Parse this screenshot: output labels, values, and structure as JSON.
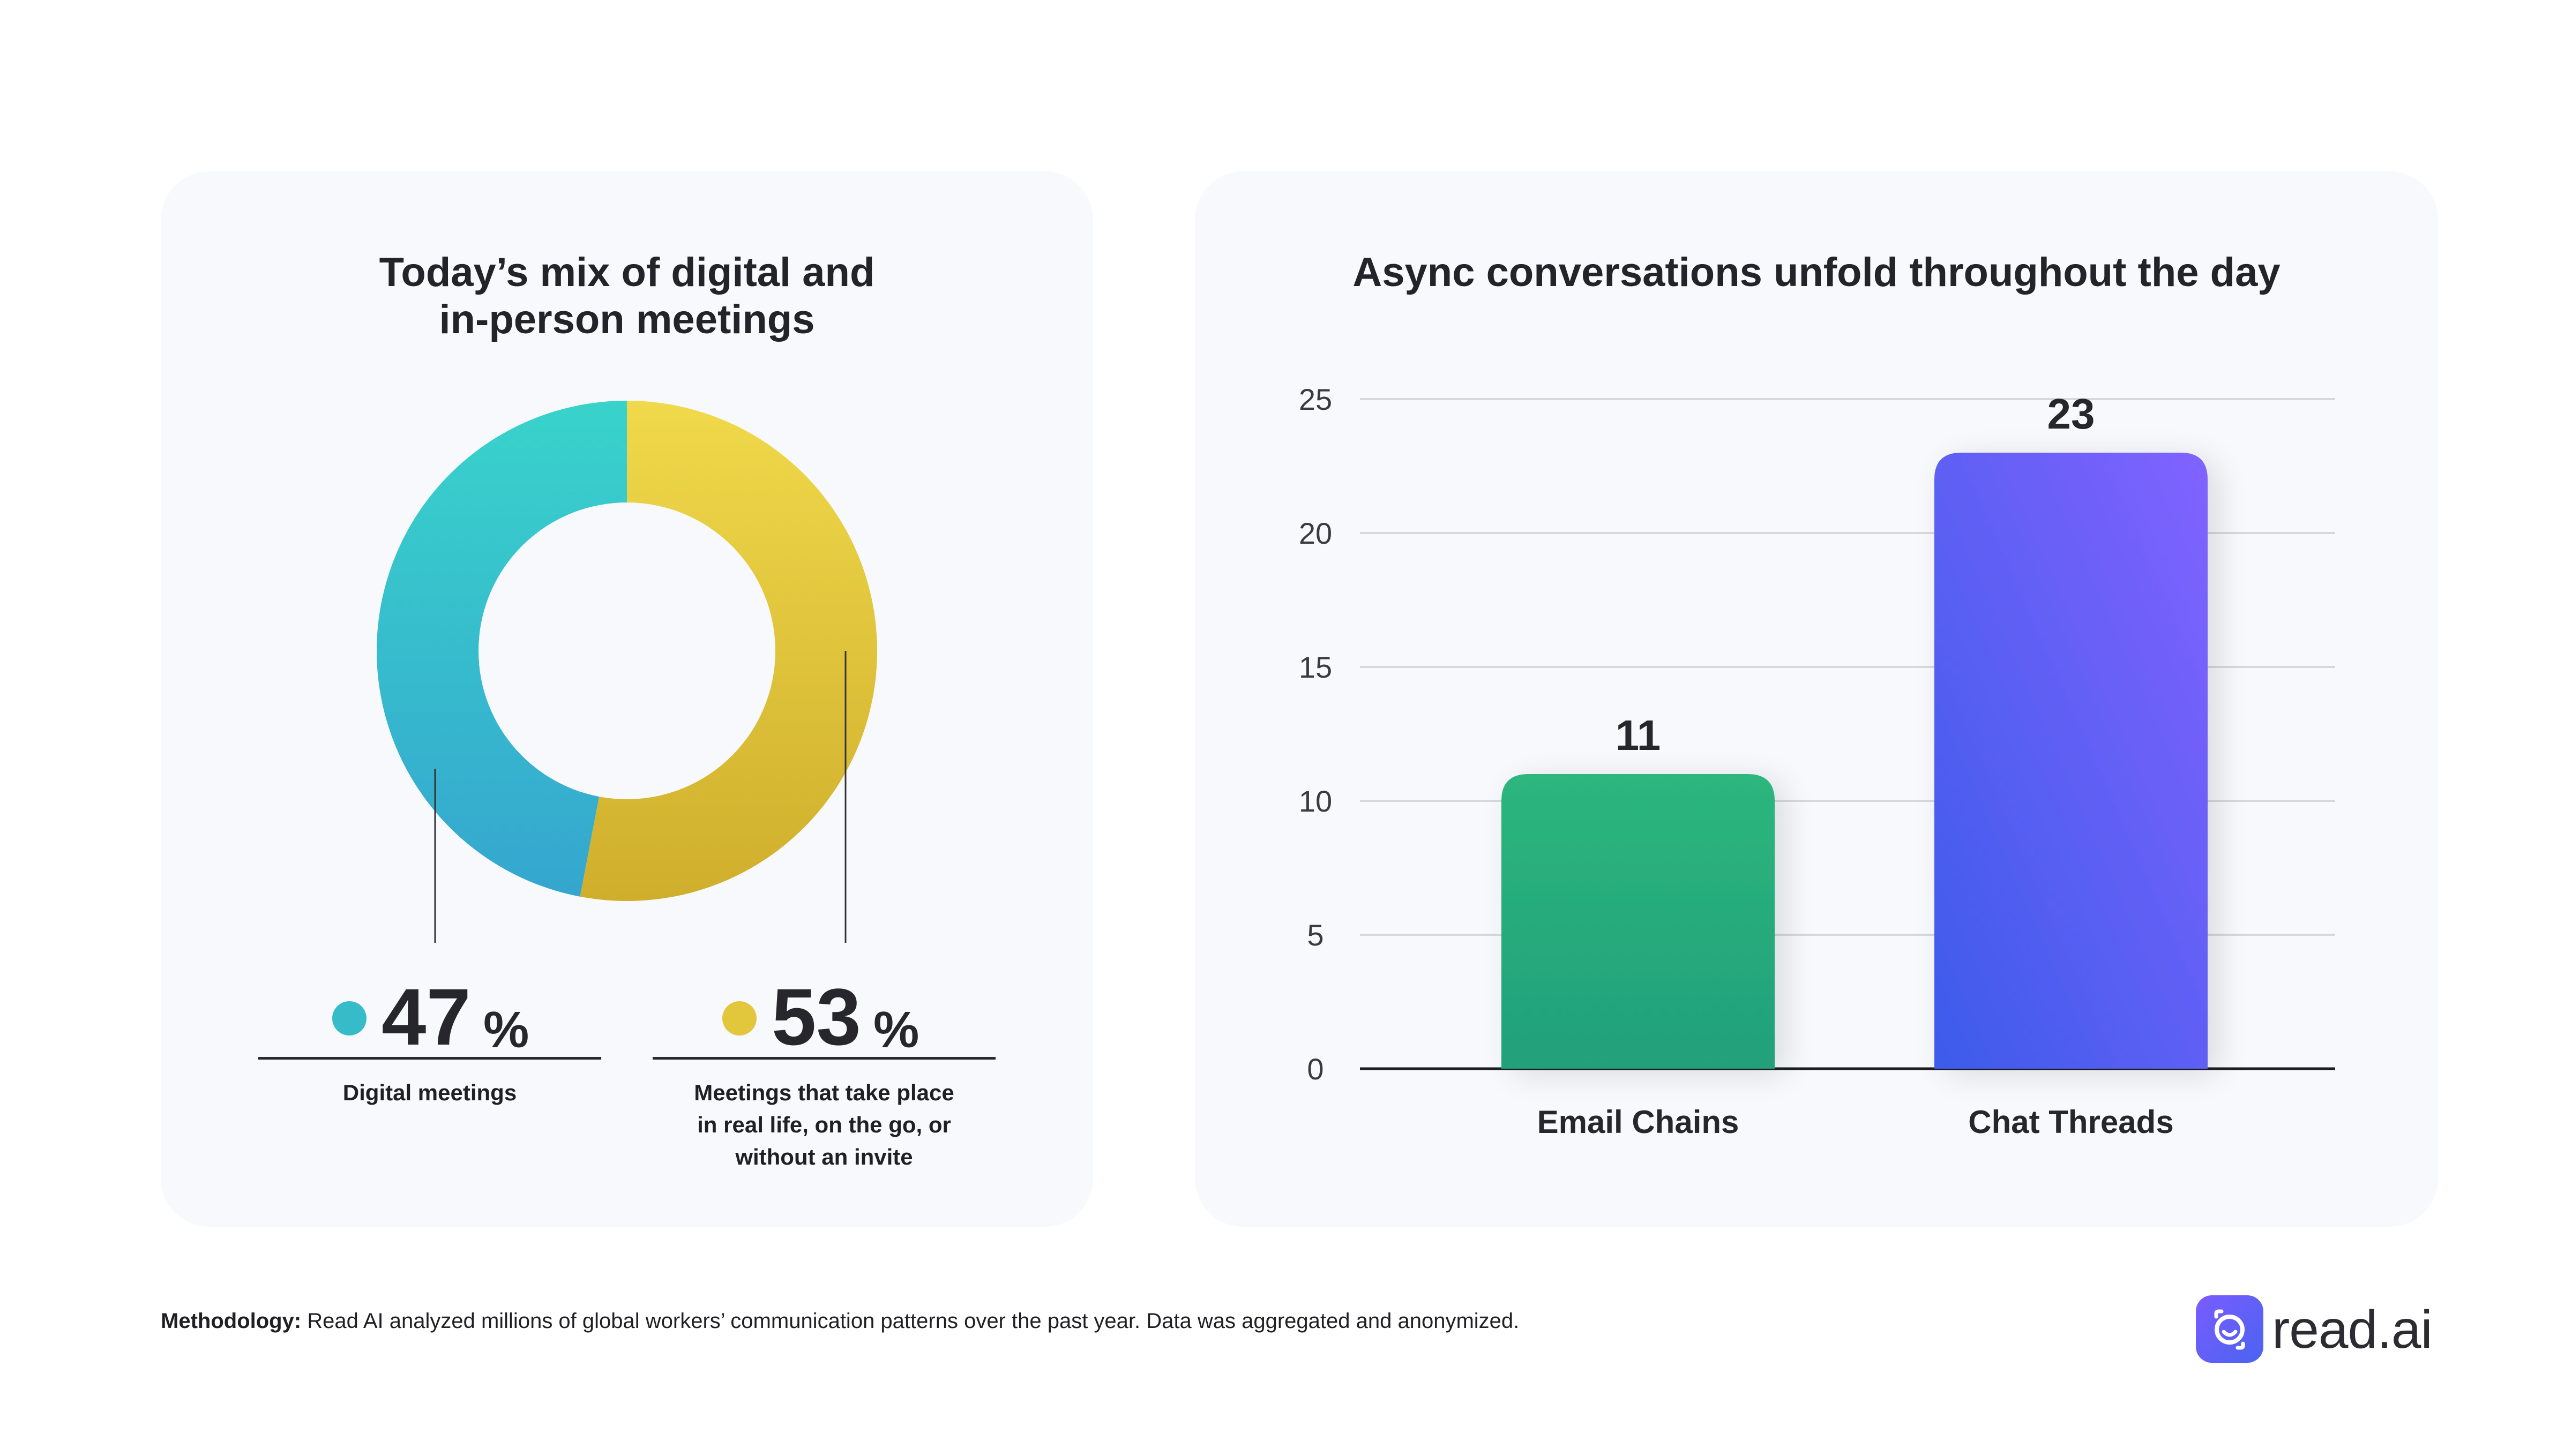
{
  "chart_data": [
    {
      "type": "pie",
      "title": "Today’s mix of digital and in-person meetings",
      "title_lines": [
        "Today’s mix of digital and",
        "in-person meetings"
      ],
      "donut": true,
      "slices": [
        {
          "label_lines": [
            "Digital meetings"
          ],
          "value": 47,
          "value_text": "47",
          "color": "#36bcc9"
        },
        {
          "label_lines": [
            "Meetings  that take place",
            "in real life, on the go, or",
            "without an invite"
          ],
          "value": 53,
          "value_text": "53",
          "color": "#e2c63c"
        }
      ],
      "percent_symbol": "%"
    },
    {
      "type": "bar",
      "title": "Async conversations unfold throughout the day",
      "categories": [
        "Email Chains",
        "Chat Threads"
      ],
      "values": [
        11,
        23
      ],
      "value_labels": [
        "11",
        "23"
      ],
      "ylim": [
        0,
        25
      ],
      "yticks": [
        0,
        5,
        10,
        15,
        20,
        25
      ],
      "grid": true,
      "colors": [
        "#2bb07a",
        "#5b62f5"
      ],
      "xlabel": "",
      "ylabel": ""
    }
  ],
  "footer": {
    "methodology_label": "Methodology:",
    "methodology_text": " Read AI analyzed millions of global workers’ communication patterns over the past year. Data was aggregated and anonymized."
  },
  "brand": {
    "logo_text": "read.ai",
    "logo_icon": "read-ai-logo-icon",
    "accent": "#5b62f5"
  }
}
